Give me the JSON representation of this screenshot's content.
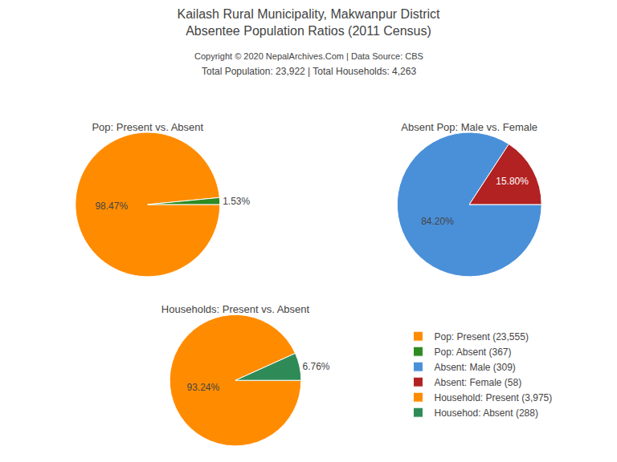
{
  "title": "Kailash Rural Municipality, Makwanpur District",
  "subtitle": "Absentee Population Ratios (2011 Census)",
  "annotations": [
    "Copyright © 2020 NepalArchives.Com | Data Source: CBS",
    "Total Population: 23,922 | Total Households: 4,263"
  ],
  "chart_data": [
    {
      "type": "pie",
      "title": "Pop: Present vs. Absent",
      "categories": [
        "Pop: Present (23,555)",
        "Pop: Absent (367)"
      ],
      "values": [
        98.47,
        1.53
      ],
      "value_labels": [
        "98.47%",
        "1.53%"
      ],
      "colors": [
        "#FF8C00",
        "#2E8B22"
      ],
      "data_labels": true,
      "legend": "right"
    },
    {
      "type": "pie",
      "title": "Absent Pop: Male vs. Female",
      "categories": [
        "Absent: Male (309)",
        "Absent: Female (58)"
      ],
      "values": [
        84.2,
        15.8
      ],
      "value_labels": [
        "84.20%",
        "15.80%"
      ],
      "colors": [
        "#4A90D9",
        "#B22222"
      ],
      "data_labels": true,
      "legend": "right"
    },
    {
      "type": "pie",
      "title": "Households: Present vs. Absent",
      "categories": [
        "Household: Present (3,975)",
        "Househod: Absent (288)"
      ],
      "values": [
        93.24,
        6.76
      ],
      "value_labels": [
        "93.24%",
        "6.76%"
      ],
      "colors": [
        "#FF8C00",
        "#2E8B57"
      ],
      "data_labels": true,
      "legend": "right"
    }
  ]
}
